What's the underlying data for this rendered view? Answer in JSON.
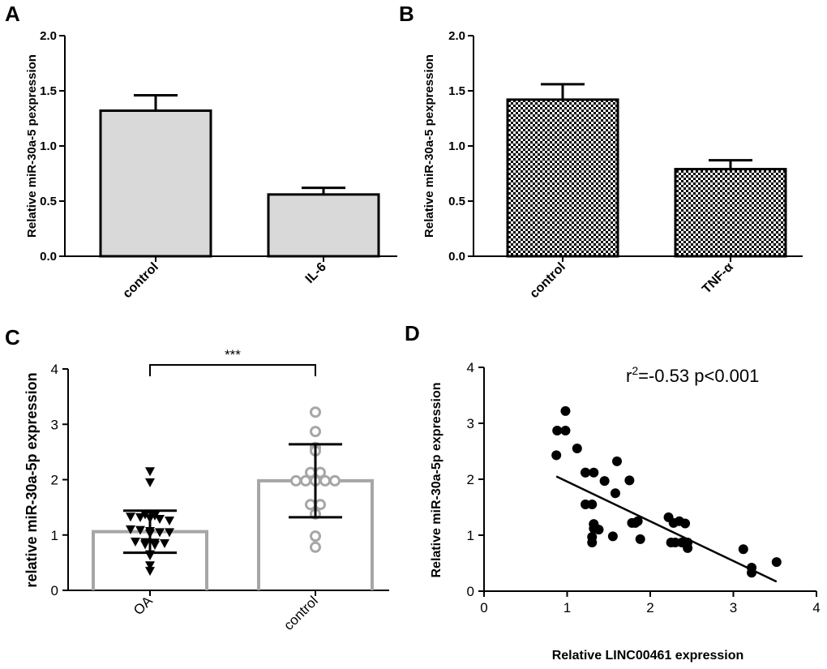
{
  "chart_data": [
    {
      "panel": "A",
      "type": "bar",
      "categories": [
        "control",
        "IL-6"
      ],
      "values": [
        1.32,
        0.56
      ],
      "errors": [
        0.14,
        0.06
      ],
      "title": "",
      "xlabel": "",
      "ylabel": "Relative miR-30a-5 pexpression",
      "ylim": [
        0,
        2.0
      ],
      "yticks": [
        "0.0",
        "0.5",
        "1.0",
        "1.5",
        "2.0"
      ],
      "fill": "#d9d9d9"
    },
    {
      "panel": "B",
      "type": "bar",
      "categories": [
        "control",
        "TNF-α"
      ],
      "values": [
        1.42,
        0.79
      ],
      "errors": [
        0.14,
        0.08
      ],
      "title": "",
      "xlabel": "",
      "ylabel": "Relative miR-30a-5 pexpression",
      "ylim": [
        0,
        2.0
      ],
      "yticks": [
        "0.0",
        "0.5",
        "1.0",
        "1.5",
        "2.0"
      ],
      "fill": "checkerboard"
    },
    {
      "panel": "C",
      "type": "bar",
      "categories": [
        "OA",
        "control"
      ],
      "values": [
        1.06,
        1.98
      ],
      "sd": [
        0.38,
        0.66
      ],
      "points": [
        [
          2.15,
          1.95,
          1.37,
          1.35,
          1.33,
          1.32,
          1.3,
          1.29,
          1.26,
          1.1,
          1.09,
          1.07,
          1.05,
          1.05,
          1.03,
          0.88,
          0.87,
          0.86,
          0.85,
          0.83,
          0.82,
          0.65,
          0.63,
          0.45,
          0.35
        ],
        [
          3.22,
          2.87,
          2.58,
          2.52,
          2.13,
          2.13,
          1.98,
          1.98,
          1.98,
          1.98,
          1.98,
          1.55,
          1.55,
          1.38,
          0.98,
          0.78
        ]
      ],
      "significance": "***",
      "title": "",
      "xlabel": "",
      "ylabel": "relative miR-30a-5p expression",
      "ylim": [
        0,
        4
      ],
      "yticks": [
        "0",
        "1",
        "2",
        "3",
        "4"
      ],
      "bar_color": "#a6a6a6"
    },
    {
      "panel": "D",
      "type": "scatter",
      "x": [
        0.98,
        0.88,
        0.98,
        0.87,
        1.12,
        1.22,
        1.32,
        1.45,
        1.6,
        1.75,
        1.58,
        1.22,
        1.3,
        1.32,
        1.32,
        1.38,
        1.3,
        1.3,
        1.55,
        1.78,
        1.82,
        1.85,
        1.88,
        2.22,
        2.28,
        2.25,
        2.35,
        2.42,
        2.45,
        2.3,
        2.38,
        2.45,
        3.12,
        3.22,
        3.22,
        3.52,
        1.22,
        1.32
      ],
      "y": [
        3.22,
        2.87,
        2.87,
        2.43,
        2.55,
        2.12,
        2.12,
        1.97,
        2.32,
        1.98,
        1.75,
        1.55,
        1.55,
        1.2,
        1.12,
        1.1,
        0.97,
        0.87,
        0.98,
        1.22,
        1.22,
        1.25,
        0.93,
        1.32,
        1.22,
        0.87,
        1.25,
        1.21,
        0.87,
        0.87,
        0.87,
        0.77,
        0.75,
        0.42,
        0.33,
        0.52,
        2.12,
        1.2
      ],
      "fit_line": {
        "x": [
          0.87,
          3.52
        ],
        "y": [
          2.05,
          0.17
        ]
      },
      "annotation": {
        "r2_label": "r",
        "r2_sup": "2",
        "r2_rest": "=-0.53 p<0.001"
      },
      "title": "",
      "xlabel": "Relative LINC00461 expression",
      "ylabel": "Relative miR-30a-5p expression",
      "xlim": [
        0,
        4
      ],
      "ylim": [
        0,
        4
      ],
      "xticks": [
        "0",
        "1",
        "2",
        "3",
        "4"
      ],
      "yticks": [
        "0",
        "1",
        "2",
        "3",
        "4"
      ]
    }
  ],
  "panel_labels": [
    "A",
    "B",
    "C",
    "D"
  ]
}
